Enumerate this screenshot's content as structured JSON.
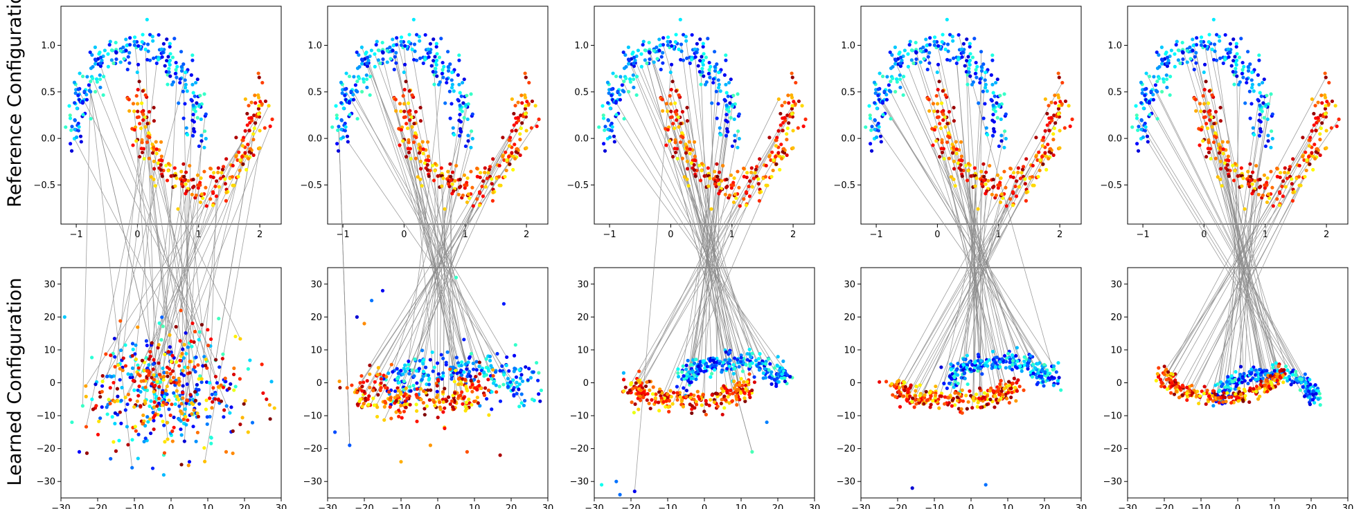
{
  "chart_data": {
    "type": "scatter",
    "figure_title": "",
    "row_labels": [
      "Reference Configuration",
      "Learned Configuration"
    ],
    "colormap": "jet",
    "connector_color": "#8c8c8c",
    "reference_axes": {
      "xlim": [
        -1.25,
        2.35
      ],
      "ylim": [
        -0.92,
        1.42
      ],
      "xticks": [
        -1,
        0,
        1,
        2
      ],
      "xtick_labels": [
        "−1",
        "0",
        "1",
        "2"
      ],
      "yticks": [
        -0.5,
        0.0,
        0.5,
        1.0
      ],
      "ytick_labels": [
        "−0.5",
        "0.0",
        "0.5",
        "1.0"
      ]
    },
    "learned_axes": {
      "xlim": [
        -30,
        30
      ],
      "ylim": [
        -35,
        35
      ],
      "xticks": [
        -30,
        -20,
        -10,
        0,
        10,
        20,
        30
      ],
      "xtick_labels": [
        "−30",
        "−20",
        "−10",
        "0",
        "10",
        "20",
        "30"
      ],
      "yticks": [
        -30,
        -20,
        -10,
        0,
        10,
        20,
        30
      ],
      "ytick_labels": [
        "−30",
        "−20",
        "−10",
        "0",
        "10",
        "20",
        "30"
      ]
    },
    "reference_dataset": {
      "kind": "two-moons",
      "points_per_moon": 250,
      "upper_moon": {
        "center": [
          0,
          0
        ],
        "radius": 1.0,
        "angle_range_deg": [
          0,
          180
        ],
        "noise_sd": 0.1
      },
      "lower_moon": {
        "center": [
          1,
          0.5
        ],
        "radius": 1.0,
        "angle_range_deg": [
          180,
          360
        ],
        "noise_sd": 0.1
      },
      "upper_moon_colors": "blue / cyan / light green",
      "lower_moon_colors": "dark red / red / orange / yellow"
    },
    "panels": [
      {
        "column": 1,
        "learned_state": "unstructured cloud",
        "cloud_center": [
          -1,
          -2
        ],
        "cloud_spread": [
          10,
          10
        ],
        "separation": 0.0,
        "outlier_points": [
          [
            -29,
            20
          ],
          [
            -27,
            -12
          ],
          [
            -25,
            -21
          ],
          [
            -9,
            -23
          ],
          [
            -5,
            -26
          ],
          [
            -2,
            -28
          ],
          [
            5,
            -24
          ],
          [
            15,
            -21
          ],
          [
            21,
            -15
          ],
          [
            26,
            -5
          ],
          [
            27,
            -11
          ]
        ],
        "connection_count": 55
      },
      {
        "column": 2,
        "learned_state": "partially formed moons",
        "moon_upper": {
          "x_range": [
            -10,
            23
          ],
          "y_range": [
            -7,
            10
          ]
        },
        "moon_lower": {
          "x_range": [
            -20,
            10
          ],
          "y_range": [
            -10,
            5
          ]
        },
        "separation": 0.45,
        "outlier_points": [
          [
            -22,
            20
          ],
          [
            -18,
            25
          ],
          [
            -15,
            28
          ],
          [
            5,
            32
          ],
          [
            18,
            24
          ],
          [
            -28,
            -15
          ],
          [
            -24,
            -19
          ],
          [
            -10,
            -24
          ],
          [
            -2,
            -19
          ],
          [
            8,
            -21
          ],
          [
            17,
            -22
          ],
          [
            -20,
            18
          ]
        ],
        "connection_count": 55
      },
      {
        "column": 3,
        "learned_state": "two separated moons",
        "moon_upper": {
          "x_range": [
            -5,
            21
          ],
          "y_range": [
            -4,
            11
          ]
        },
        "moon_lower": {
          "x_range": [
            -19,
            11
          ],
          "y_range": [
            -9,
            4
          ]
        },
        "separation": 0.85,
        "outlier_points": [
          [
            -28,
            -31
          ],
          [
            -24,
            -30
          ],
          [
            -23,
            -34
          ],
          [
            -19,
            -33
          ],
          [
            13,
            -21
          ],
          [
            17,
            -12
          ],
          [
            -22,
            3
          ]
        ],
        "connection_count": 55
      },
      {
        "column": 4,
        "learned_state": "two separated moons",
        "moon_upper": {
          "x_range": [
            -5,
            21
          ],
          "y_range": [
            -5,
            12
          ]
        },
        "moon_lower": {
          "x_range": [
            -20,
            11
          ],
          "y_range": [
            -9,
            4
          ]
        },
        "separation": 0.9,
        "outlier_points": [
          [
            -16,
            -32
          ],
          [
            4,
            -31
          ],
          [
            22,
            5
          ]
        ],
        "connection_count": 55
      },
      {
        "column": 5,
        "learned_state": "two cleanly separated moons",
        "moon_upper": {
          "x_range": [
            -5,
            21
          ],
          "y_range": [
            -12,
            10
          ]
        },
        "moon_lower": {
          "x_range": [
            -20,
            11
          ],
          "y_range": [
            -10,
            11
          ]
        },
        "separation": 1.0,
        "outlier_points": [],
        "connection_count": 55
      }
    ]
  }
}
